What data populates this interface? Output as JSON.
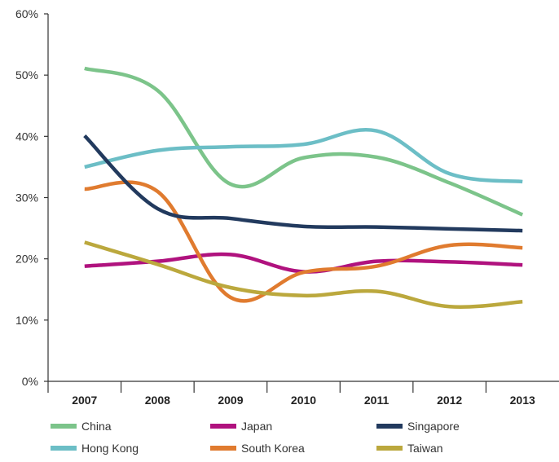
{
  "chart_data": {
    "type": "line",
    "title": "",
    "xlabel": "",
    "ylabel": "",
    "categories": [
      "2007",
      "2008",
      "2009",
      "2010",
      "2011",
      "2012",
      "2013"
    ],
    "ylim": [
      0,
      60
    ],
    "yticks": [
      0,
      10,
      20,
      30,
      40,
      50,
      60
    ],
    "ytick_labels": [
      "0%",
      "10%",
      "20%",
      "30%",
      "40%",
      "50%",
      "60%"
    ],
    "grid": false,
    "legend_position": "bottom",
    "series": [
      {
        "name": "China",
        "color": "#7cc48a",
        "values": [
          51.1,
          47.5,
          32.2,
          36.5,
          36.6,
          32.4,
          27.2
        ]
      },
      {
        "name": "Hong Kong",
        "color": "#6cbec6",
        "values": [
          35.0,
          37.7,
          38.3,
          38.7,
          40.9,
          33.9,
          32.6
        ]
      },
      {
        "name": "Japan",
        "color": "#b0127e",
        "values": [
          18.8,
          19.6,
          20.7,
          17.9,
          19.6,
          19.5,
          19.0
        ]
      },
      {
        "name": "South Korea",
        "color": "#e07b2f",
        "values": [
          31.4,
          31.0,
          13.7,
          17.8,
          18.8,
          22.2,
          21.8
        ]
      },
      {
        "name": "Singapore",
        "color": "#223a5e",
        "values": [
          40.1,
          28.2,
          26.6,
          25.3,
          25.2,
          24.9,
          24.6
        ]
      },
      {
        "name": "Taiwan",
        "color": "#bba83d",
        "values": [
          22.7,
          19.1,
          15.3,
          14.0,
          14.7,
          12.2,
          13.0
        ]
      }
    ],
    "legend": [
      [
        "China",
        "Japan",
        "Singapore"
      ],
      [
        "Hong Kong",
        "South Korea",
        "Taiwan"
      ]
    ]
  }
}
